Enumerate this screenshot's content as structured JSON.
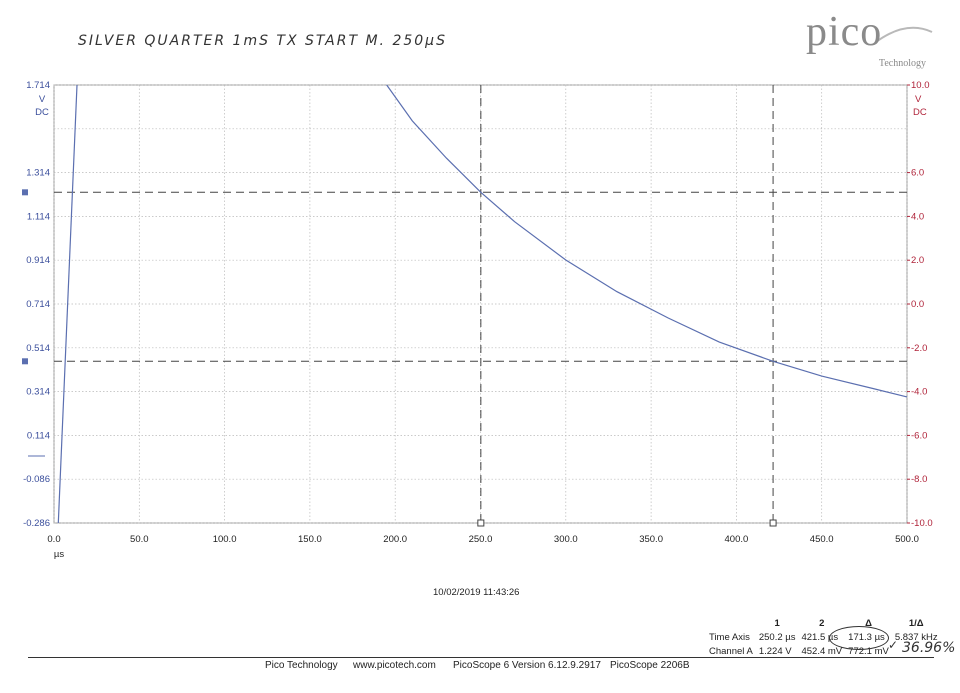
{
  "note": "SILVER QUARTER  1mS TX   START M. 250µS",
  "logo": {
    "word": "pico",
    "sub": "Technology"
  },
  "chart_data": {
    "type": "line",
    "xlabel": "µs",
    "xlim": [
      0,
      500
    ],
    "x_ticks": [
      "0.0",
      "50.0",
      "100.0",
      "150.0",
      "200.0",
      "250.0",
      "300.0",
      "350.0",
      "400.0",
      "450.0",
      "500.0"
    ],
    "left_axis": {
      "unit": "V",
      "coupling": "DC",
      "ylim": [
        -0.286,
        1.714
      ],
      "ticks": [
        "1.714",
        "1.314",
        "1.114",
        "0.914",
        "0.714",
        "0.514",
        "0.314",
        "0.114",
        "-0.086",
        "-0.286"
      ]
    },
    "right_axis": {
      "unit": "V",
      "coupling": "DC",
      "ylim": [
        -10.0,
        10.0
      ],
      "ticks": [
        "10.0",
        "6.0",
        "4.0",
        "2.0",
        "0.0",
        "-2.0",
        "-4.0",
        "-6.0",
        "-8.0",
        "-10.0"
      ]
    },
    "series": [
      {
        "color": "#5b6fb0",
        "rise": {
          "x": [
            2.5,
            13.5
          ],
          "y": [
            -0.286,
            1.714
          ]
        },
        "decay": {
          "x": [
            195,
            210,
            230,
            250.2,
            270,
            300,
            330,
            360,
            390,
            421.5,
            450,
            480,
            500
          ],
          "y": [
            1.714,
            1.55,
            1.38,
            1.224,
            1.09,
            0.915,
            0.77,
            0.65,
            0.54,
            0.4524,
            0.385,
            0.328,
            0.29
          ]
        }
      }
    ],
    "cursors": {
      "time": [
        250.2,
        421.5
      ],
      "voltage": [
        1.224,
        0.4524
      ]
    },
    "grid": true
  },
  "timestamp": "10/02/2019 11:43:26",
  "measurements": {
    "headers": [
      "",
      "1",
      "2",
      "Δ",
      "1/Δ"
    ],
    "rows": [
      [
        "Time Axis",
        "250.2 µs",
        "421.5 µs",
        "171.3 µs",
        "5.837 kHz"
      ],
      [
        "Channel A",
        "1.224 V",
        "452.4 mV",
        "772.1 mV",
        ""
      ]
    ]
  },
  "annotation": "36.96%",
  "footer": {
    "company": "Pico Technology",
    "url": "www.picotech.com",
    "version": "PicoScope 6 Version 6.12.9.2917",
    "device": "PicoScope 2206B"
  }
}
